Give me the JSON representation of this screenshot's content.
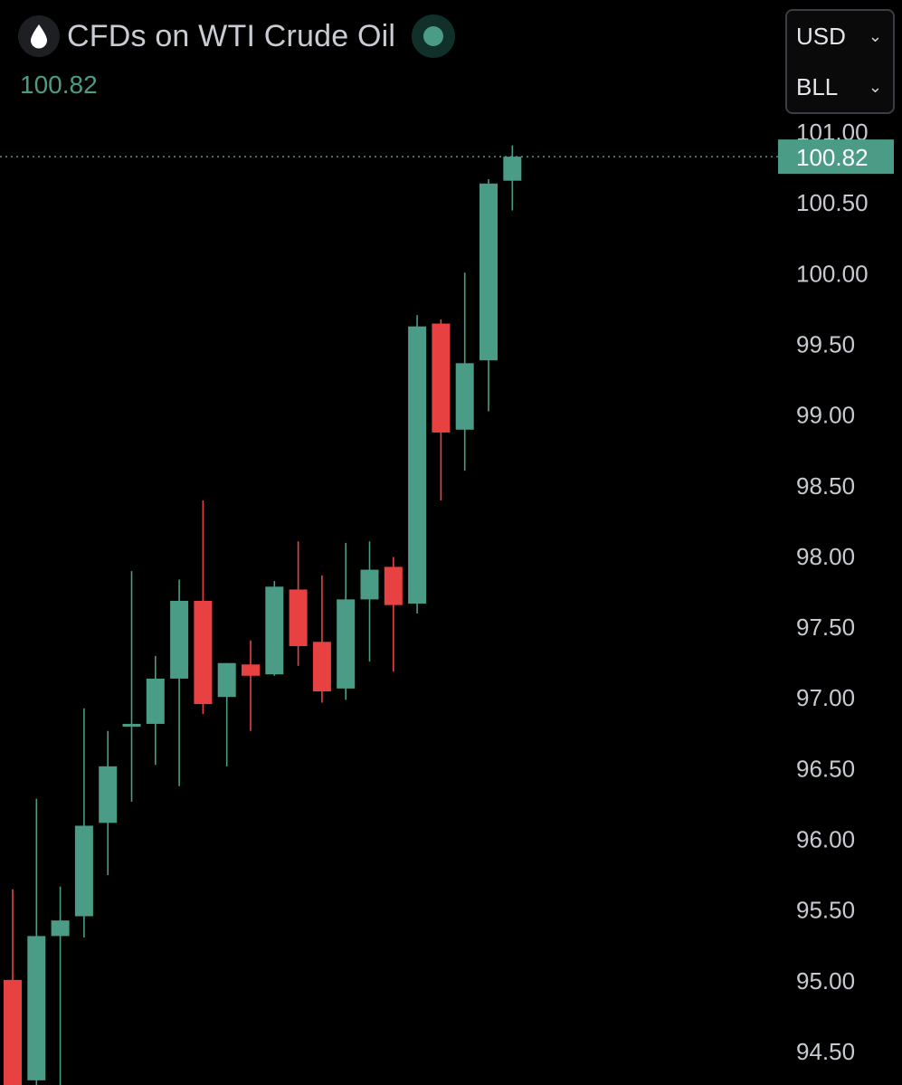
{
  "header": {
    "title": "CFDs on WTI Crude Oil",
    "price": "100.82",
    "icon": "drop-icon",
    "status_icon": "live-status-dot"
  },
  "selectors": {
    "currency": "USD",
    "unit": "BLL"
  },
  "colors": {
    "up": "#4a9c86",
    "down": "#e84141",
    "price_text": "#4a9c86",
    "axis_text": "#c7cad0",
    "current_price_label_bg": "#4a9c86"
  },
  "chart_data": {
    "type": "candlestick",
    "title": "CFDs on WTI Crude Oil",
    "ylim": [
      94.3,
      101.1
    ],
    "y_ticks": [
      "94.50",
      "95.00",
      "95.50",
      "96.00",
      "96.50",
      "97.00",
      "97.50",
      "98.00",
      "98.50",
      "99.00",
      "99.50",
      "100.00",
      "100.50",
      "101.00"
    ],
    "current_price": 100.82,
    "current_price_label": "100.82",
    "candles": [
      {
        "open": 95.0,
        "high": 95.64,
        "low": 94.2,
        "close": 94.19
      },
      {
        "open": 94.29,
        "high": 96.28,
        "low": 94.0,
        "close": 95.31
      },
      {
        "open": 95.31,
        "high": 95.66,
        "low": 94.0,
        "close": 95.42
      },
      {
        "open": 95.45,
        "high": 96.92,
        "low": 95.3,
        "close": 96.09
      },
      {
        "open": 96.11,
        "high": 96.76,
        "low": 95.74,
        "close": 96.51
      },
      {
        "open": 96.79,
        "high": 97.89,
        "low": 96.26,
        "close": 96.81
      },
      {
        "open": 96.81,
        "high": 97.29,
        "low": 96.52,
        "close": 97.13
      },
      {
        "open": 97.13,
        "high": 97.83,
        "low": 96.37,
        "close": 97.68
      },
      {
        "open": 97.68,
        "high": 98.39,
        "low": 96.88,
        "close": 96.95
      },
      {
        "open": 97.0,
        "high": 97.24,
        "low": 96.51,
        "close": 97.24
      },
      {
        "open": 97.23,
        "high": 97.4,
        "low": 96.76,
        "close": 97.15
      },
      {
        "open": 97.16,
        "high": 97.82,
        "low": 97.15,
        "close": 97.78
      },
      {
        "open": 97.76,
        "high": 98.1,
        "low": 97.22,
        "close": 97.36
      },
      {
        "open": 97.39,
        "high": 97.86,
        "low": 96.96,
        "close": 97.04
      },
      {
        "open": 97.06,
        "high": 98.09,
        "low": 96.98,
        "close": 97.69
      },
      {
        "open": 97.69,
        "high": 98.1,
        "low": 97.25,
        "close": 97.9
      },
      {
        "open": 97.92,
        "high": 97.99,
        "low": 97.18,
        "close": 97.65
      },
      {
        "open": 97.66,
        "high": 99.7,
        "low": 97.59,
        "close": 99.62
      },
      {
        "open": 99.64,
        "high": 99.67,
        "low": 98.39,
        "close": 98.87
      },
      {
        "open": 98.89,
        "high": 100.0,
        "low": 98.6,
        "close": 99.36
      },
      {
        "open": 99.38,
        "high": 100.66,
        "low": 99.02,
        "close": 100.63
      },
      {
        "open": 100.65,
        "high": 100.9,
        "low": 100.44,
        "close": 100.82
      }
    ]
  }
}
